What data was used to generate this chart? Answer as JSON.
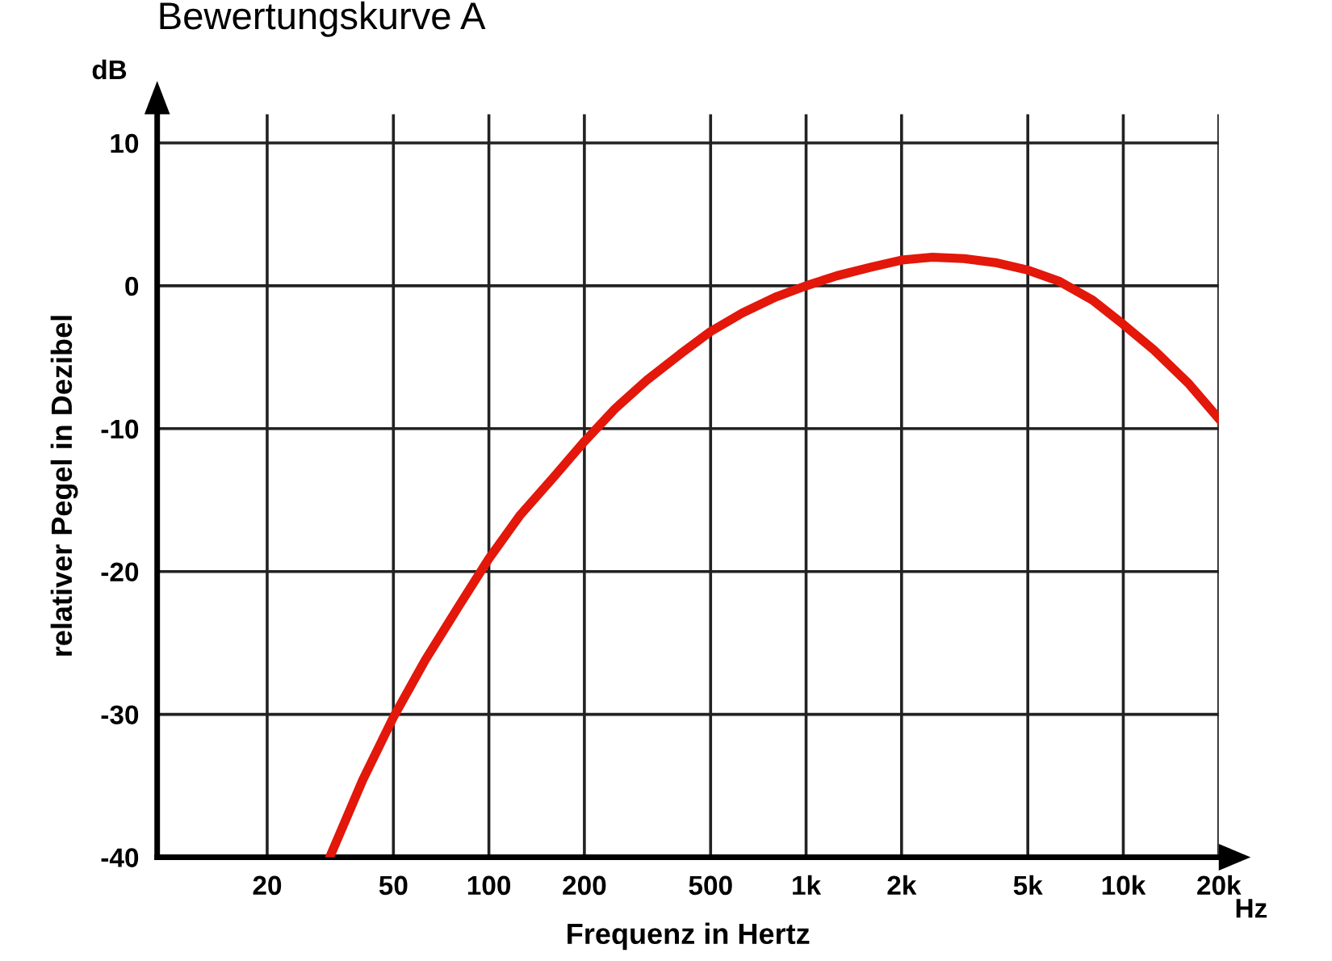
{
  "chart_data": {
    "type": "line",
    "title": "Bewertungskurve A",
    "xlabel": "Frequenz in Hertz",
    "ylabel": "relativer Pegel in Dezibel",
    "annotations": [
      "dB",
      "Hz"
    ],
    "log": "x",
    "xlim": [
      9,
      20000
    ],
    "ylim": [
      -40,
      12
    ],
    "xticks": [
      20,
      50,
      100,
      200,
      500,
      {
        "value": 1000,
        "label": "1k"
      },
      {
        "value": 2000,
        "label": "2k"
      },
      {
        "value": 5000,
        "label": "5k"
      },
      {
        "value": 10000,
        "label": "10k"
      },
      {
        "value": 20000,
        "label": "20k"
      }
    ],
    "yticks": [
      -40,
      -30,
      -20,
      -10,
      0,
      10
    ],
    "grid": true,
    "marker": "none",
    "line_style": "solid",
    "x": [
      31.5,
      40,
      50,
      63,
      80,
      100,
      125,
      160,
      200,
      250,
      315,
      400,
      500,
      630,
      800,
      1000,
      1250,
      1600,
      2000,
      2500,
      3150,
      4000,
      5000,
      6300,
      8000,
      10000,
      12500,
      16000,
      20000
    ],
    "series": [
      {
        "color": "#e3170a",
        "values": [
          -40,
          -34.6,
          -30.2,
          -26.2,
          -22.5,
          -19.1,
          -16.1,
          -13.4,
          -10.9,
          -8.6,
          -6.6,
          -4.8,
          -3.2,
          -1.9,
          -0.8,
          0,
          0.7,
          1.3,
          1.8,
          2.0,
          1.9,
          1.6,
          1.1,
          0.3,
          -1.0,
          -2.7,
          -4.5,
          -6.8,
          -9.3
        ]
      }
    ]
  }
}
